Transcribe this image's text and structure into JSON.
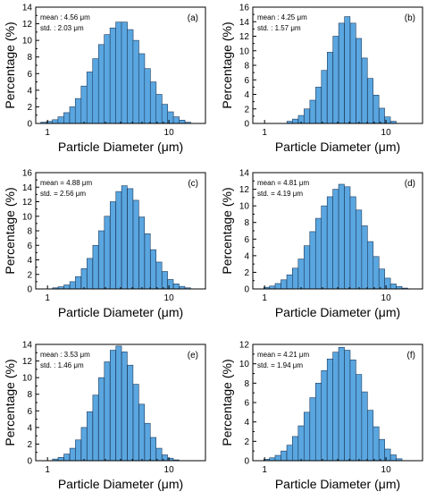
{
  "chart_data": [
    {
      "type": "bar",
      "panel_label": "(a)",
      "annotation": [
        "mean : 4.56 μm",
        "std. : 2.03 μm"
      ],
      "xlabel": "Particle Diameter (μm)",
      "ylabel": "Percentage (%)",
      "x_scale": "log",
      "xlim": [
        0.8,
        20
      ],
      "ylim": [
        0,
        14
      ],
      "y_ticks": [
        0,
        2,
        4,
        6,
        8,
        10,
        12,
        14
      ],
      "x_ticks": [
        1,
        10
      ],
      "x": [
        0.93,
        1.04,
        1.16,
        1.29,
        1.44,
        1.61,
        1.79,
        2.0,
        2.23,
        2.49,
        2.78,
        3.1,
        3.46,
        3.86,
        4.3,
        4.8,
        5.35,
        5.97,
        6.66,
        7.43,
        8.29,
        9.24,
        10.31,
        11.5,
        12.83,
        14.31
      ],
      "values": [
        0.15,
        0.25,
        0.45,
        0.8,
        1.3,
        2.0,
        3.0,
        4.5,
        6.2,
        7.8,
        9.5,
        10.7,
        11.5,
        12.2,
        12.2,
        11.3,
        10.0,
        8.4,
        6.6,
        5.0,
        3.5,
        2.3,
        1.4,
        0.8,
        0.4,
        0.15
      ],
      "bar_color": "#5aa6e0",
      "grid": false
    },
    {
      "type": "bar",
      "panel_label": "(b)",
      "annotation": [
        "mean : 4.25 μm",
        "std. : 1.57 μm"
      ],
      "xlabel": "Particle Diameter (μm)",
      "ylabel": "Percentage (%)",
      "x_scale": "log",
      "xlim": [
        0.8,
        20
      ],
      "ylim": [
        0,
        16
      ],
      "y_ticks": [
        0,
        2,
        4,
        6,
        8,
        10,
        12,
        14,
        16
      ],
      "x_ticks": [
        1,
        10
      ],
      "x": [
        1.61,
        1.79,
        2.0,
        2.23,
        2.49,
        2.78,
        3.1,
        3.46,
        3.86,
        4.3,
        4.8,
        5.35,
        5.97,
        6.66,
        7.43,
        8.29,
        9.24,
        10.31,
        11.5
      ],
      "values": [
        0.3,
        0.6,
        1.1,
        2.0,
        3.2,
        5.0,
        7.3,
        9.8,
        12.0,
        13.8,
        14.7,
        13.8,
        11.7,
        9.0,
        6.2,
        3.9,
        2.1,
        0.9,
        0.3
      ],
      "bar_color": "#5aa6e0",
      "grid": false
    },
    {
      "type": "bar",
      "panel_label": "(c)",
      "annotation": [
        "mean = 4.88 μm",
        "std. = 2.56 μm"
      ],
      "xlabel": "Particle Diameter (μm)",
      "ylabel": "Percentage (%)",
      "x_scale": "log",
      "xlim": [
        0.8,
        20
      ],
      "ylim": [
        0,
        16
      ],
      "y_ticks": [
        0,
        2,
        4,
        6,
        8,
        10,
        12,
        14,
        16
      ],
      "x_ticks": [
        1,
        10
      ],
      "x": [
        1.16,
        1.29,
        1.44,
        1.61,
        1.79,
        2.0,
        2.23,
        2.49,
        2.78,
        3.1,
        3.46,
        3.86,
        4.3,
        4.8,
        5.35,
        5.97,
        6.66,
        7.43,
        8.29,
        9.24,
        10.31,
        11.5,
        12.83,
        14.31
      ],
      "values": [
        0.15,
        0.3,
        0.55,
        1.0,
        1.7,
        2.8,
        4.2,
        6.0,
        8.0,
        10.0,
        12.0,
        13.4,
        14.2,
        13.8,
        12.2,
        9.9,
        7.6,
        5.4,
        3.7,
        2.4,
        1.3,
        0.7,
        0.35,
        0.15
      ],
      "bar_color": "#5aa6e0",
      "grid": false
    },
    {
      "type": "bar",
      "panel_label": "(d)",
      "annotation": [
        "mean = 4.81 μm",
        "std. = 4.19 μm"
      ],
      "xlabel": "Particle Diameter (μm)",
      "ylabel": "Percentage (%)",
      "x_scale": "log",
      "xlim": [
        0.8,
        20
      ],
      "ylim": [
        0,
        14
      ],
      "y_ticks": [
        0,
        2,
        4,
        6,
        8,
        10,
        12,
        14
      ],
      "x_ticks": [
        1,
        10
      ],
      "x": [
        1.04,
        1.16,
        1.29,
        1.44,
        1.61,
        1.79,
        2.0,
        2.23,
        2.49,
        2.78,
        3.1,
        3.46,
        3.86,
        4.3,
        4.8,
        5.35,
        5.97,
        6.66,
        7.43,
        8.29,
        9.24,
        10.31,
        11.5,
        12.83,
        14.31
      ],
      "values": [
        0.2,
        0.35,
        0.65,
        1.1,
        1.7,
        2.5,
        3.6,
        5.2,
        6.9,
        8.5,
        10.0,
        11.1,
        12.0,
        12.6,
        12.3,
        11.1,
        9.5,
        7.6,
        5.7,
        3.9,
        2.4,
        1.3,
        0.6,
        0.3,
        0.1
      ],
      "bar_color": "#5aa6e0",
      "grid": false
    },
    {
      "type": "bar",
      "panel_label": "(e)",
      "annotation": [
        "mean : 3.53 μm",
        "std. : 1.46 μm"
      ],
      "xlabel": "Particle Diameter (μm)",
      "ylabel": "Percentage (%)",
      "x_scale": "log",
      "xlim": [
        0.8,
        20
      ],
      "ylim": [
        0,
        14
      ],
      "y_ticks": [
        0,
        2,
        4,
        6,
        8,
        10,
        12,
        14
      ],
      "x_ticks": [
        1,
        10
      ],
      "x": [
        1.16,
        1.29,
        1.44,
        1.61,
        1.79,
        2.0,
        2.23,
        2.49,
        2.78,
        3.1,
        3.46,
        3.86,
        4.3,
        4.8,
        5.35,
        5.97,
        6.66,
        7.43,
        8.29,
        9.24,
        10.31,
        11.5
      ],
      "values": [
        0.2,
        0.4,
        0.8,
        1.5,
        2.5,
        4.0,
        5.9,
        7.9,
        10.0,
        11.9,
        13.3,
        13.8,
        13.1,
        11.5,
        9.2,
        6.8,
        4.5,
        2.8,
        1.5,
        0.7,
        0.3,
        0.1
      ],
      "bar_color": "#5aa6e0",
      "grid": false
    },
    {
      "type": "bar",
      "panel_label": "(f)",
      "annotation": [
        "mean = 4.21 μm",
        "std. = 1.94 μm"
      ],
      "xlabel": "Particle Diameter (μm)",
      "ylabel": "Percentage (%)",
      "x_scale": "log",
      "xlim": [
        0.8,
        20
      ],
      "ylim": [
        0,
        12
      ],
      "y_ticks": [
        0,
        2,
        4,
        6,
        8,
        10,
        12
      ],
      "x_ticks": [
        1,
        10
      ],
      "x": [
        1.04,
        1.16,
        1.29,
        1.44,
        1.61,
        1.79,
        2.0,
        2.23,
        2.49,
        2.78,
        3.1,
        3.46,
        3.86,
        4.3,
        4.8,
        5.35,
        5.97,
        6.66,
        7.43,
        8.29,
        9.24,
        10.31,
        11.5,
        12.83
      ],
      "values": [
        0.15,
        0.3,
        0.55,
        1.0,
        1.6,
        2.5,
        3.6,
        5.0,
        6.5,
        8.0,
        9.3,
        10.5,
        11.2,
        11.7,
        11.4,
        10.4,
        8.9,
        7.1,
        5.2,
        3.5,
        2.2,
        1.2,
        0.6,
        0.2
      ],
      "bar_color": "#5aa6e0",
      "grid": false
    }
  ]
}
